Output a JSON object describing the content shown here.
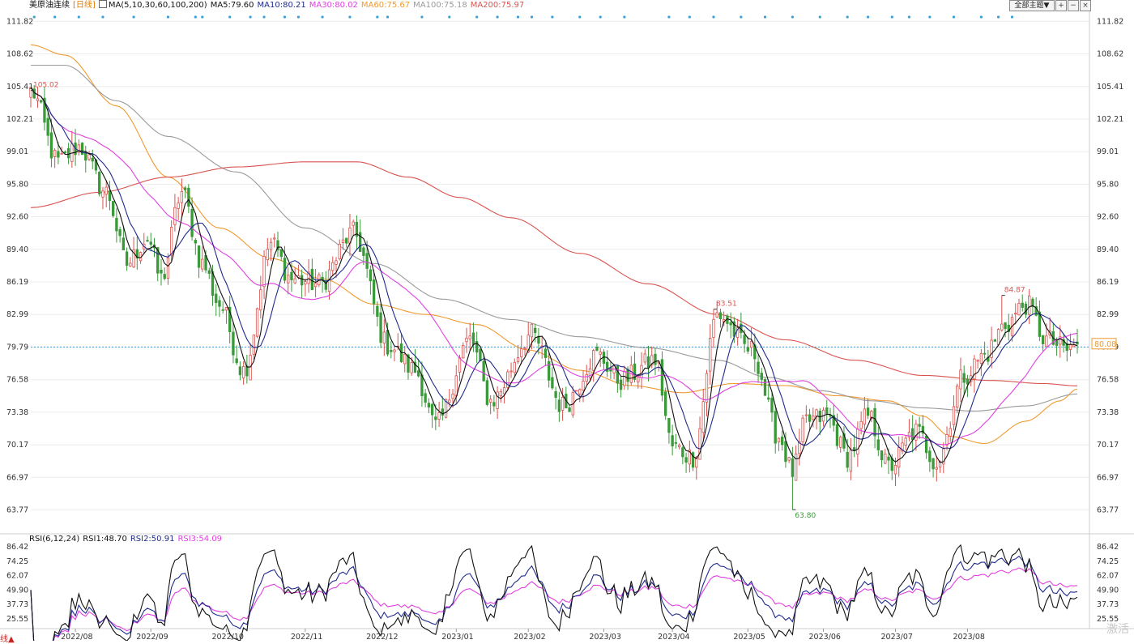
{
  "header": {
    "instrument": "美原油连续",
    "period": "[日线]",
    "ma_label": "MA(5,10,30,60,100,200)",
    "ma5": "MA5:79.60",
    "ma10": "MA10:80.21",
    "ma30": "MA30:80.02",
    "ma60": "MA60:75.67",
    "ma100": "MA100:75.18",
    "ma200": "MA200:75.97"
  },
  "rsi_header": {
    "label": "RSI(6,12,24)",
    "rsi1": "RSI1:48.70",
    "rsi2": "RSI2:50.91",
    "rsi3": "RSI3:54.09"
  },
  "toolbar": {
    "theme_label": "全部主题▼",
    "plus": "+",
    "minus": "−",
    "close": "×"
  },
  "watermark": "激活",
  "bottom_left_tag": "线▲",
  "colors": {
    "up": "#d9534f",
    "down": "#3a9a3a",
    "ma5": "#111111",
    "ma10": "#1f2a8c",
    "ma30": "#e040e0",
    "ma60": "#f09a30",
    "ma100": "#9a9a9a",
    "ma200": "#d9534f",
    "rsi1": "#111111",
    "rsi2": "#1f2a8c",
    "rsi3": "#e040e0",
    "grid": "#ececec",
    "dashed": "#3aa0d8",
    "dots": "#3aa0d8"
  },
  "chart_data": [
    {
      "type": "candlestick",
      "ylim": [
        61.5,
        112.8
      ],
      "yticks": [
        "111.82",
        "108.62",
        "105.41",
        "102.21",
        "99.01",
        "95.80",
        "92.60",
        "89.40",
        "86.19",
        "82.99",
        "79.79",
        "76.58",
        "73.38",
        "70.17",
        "66.97",
        "63.77"
      ],
      "x_labels": [
        "2022/08",
        "2022/09",
        "2022/10",
        "2022/11",
        "2022/12",
        "2023/01",
        "2023/02",
        "2023/03",
        "2023/04",
        "2023/05",
        "2023/06",
        "2023/07",
        "2023/08"
      ],
      "x_label_days": [
        13,
        35,
        57,
        80,
        102,
        124,
        145,
        167,
        187,
        209,
        231,
        252,
        273
      ],
      "num_days": 305,
      "current_price": "80.08",
      "current_value": 80.08,
      "dashed_line_value": 79.79,
      "annotations": [
        {
          "label": "105.02",
          "day": 0,
          "value": 105.02,
          "kind": "high"
        },
        {
          "label": "83.51",
          "day": 199,
          "value": 83.51,
          "kind": "high"
        },
        {
          "label": "63.80",
          "day": 222,
          "value": 63.8,
          "kind": "low"
        },
        {
          "label": "84.87",
          "day": 283,
          "value": 84.87,
          "kind": "high"
        }
      ],
      "anchors": [
        [
          0,
          105.0
        ],
        [
          8,
          98.0
        ],
        [
          14,
          99.5
        ],
        [
          22,
          95.0
        ],
        [
          28,
          88.0
        ],
        [
          34,
          90.5
        ],
        [
          38,
          86.5
        ],
        [
          44,
          95.0
        ],
        [
          50,
          88.0
        ],
        [
          55,
          84.0
        ],
        [
          62,
          77.5
        ],
        [
          70,
          90.0
        ],
        [
          76,
          86.5
        ],
        [
          84,
          86.0
        ],
        [
          94,
          91.0
        ],
        [
          104,
          80.0
        ],
        [
          112,
          77.5
        ],
        [
          118,
          72.0
        ],
        [
          128,
          80.5
        ],
        [
          134,
          74.5
        ],
        [
          146,
          81.0
        ],
        [
          155,
          74.0
        ],
        [
          165,
          79.0
        ],
        [
          172,
          76.5
        ],
        [
          182,
          78.5
        ],
        [
          187,
          70.0
        ],
        [
          193,
          69.0
        ],
        [
          200,
          83.0
        ],
        [
          210,
          79.5
        ],
        [
          218,
          71.0
        ],
        [
          222,
          67.5
        ],
        [
          226,
          72.5
        ],
        [
          232,
          73.0
        ],
        [
          238,
          69.0
        ],
        [
          244,
          73.0
        ],
        [
          250,
          68.0
        ],
        [
          258,
          71.5
        ],
        [
          264,
          68.5
        ],
        [
          272,
          77.0
        ],
        [
          278,
          79.0
        ],
        [
          284,
          82.0
        ],
        [
          290,
          84.0
        ],
        [
          296,
          80.5
        ],
        [
          302,
          79.5
        ],
        [
          305,
          80.08
        ]
      ],
      "series": [
        {
          "name": "MA5",
          "value": 79.6,
          "window": 5
        },
        {
          "name": "MA10",
          "value": 80.21,
          "window": 10
        },
        {
          "name": "MA30",
          "value": 80.02,
          "window": 30
        },
        {
          "name": "MA60",
          "value": 75.67
        },
        {
          "name": "MA100",
          "value": 75.18
        },
        {
          "name": "MA200",
          "value": 75.97
        }
      ],
      "ma_curves": {
        "MA60": [
          [
            0,
            109.5
          ],
          [
            10,
            108.5
          ],
          [
            25,
            103.5
          ],
          [
            40,
            96.5
          ],
          [
            55,
            91.5
          ],
          [
            70,
            88.5
          ],
          [
            85,
            86.5
          ],
          [
            100,
            84.0
          ],
          [
            115,
            83.0
          ],
          [
            130,
            82.0
          ],
          [
            145,
            79.5
          ],
          [
            160,
            77.5
          ],
          [
            175,
            76.0
          ],
          [
            190,
            75.3
          ],
          [
            205,
            76.2
          ],
          [
            220,
            76.0
          ],
          [
            235,
            75.0
          ],
          [
            250,
            74.5
          ],
          [
            260,
            73.0
          ],
          [
            268,
            71.0
          ],
          [
            278,
            70.3
          ],
          [
            290,
            72.5
          ],
          [
            300,
            74.5
          ],
          [
            305,
            75.67
          ]
        ],
        "MA100": [
          [
            0,
            107.5
          ],
          [
            10,
            107.5
          ],
          [
            25,
            104.0
          ],
          [
            40,
            100.5
          ],
          [
            60,
            97.0
          ],
          [
            80,
            91.5
          ],
          [
            100,
            88.0
          ],
          [
            120,
            84.5
          ],
          [
            140,
            82.5
          ],
          [
            160,
            80.8
          ],
          [
            180,
            79.7
          ],
          [
            200,
            78.5
          ],
          [
            215,
            76.8
          ],
          [
            230,
            75.5
          ],
          [
            245,
            74.5
          ],
          [
            260,
            73.8
          ],
          [
            275,
            73.5
          ],
          [
            290,
            74.0
          ],
          [
            305,
            75.18
          ]
        ],
        "MA200": [
          [
            0,
            93.5
          ],
          [
            20,
            95.0
          ],
          [
            40,
            96.5
          ],
          [
            60,
            97.5
          ],
          [
            80,
            98.0
          ],
          [
            95,
            98.0
          ],
          [
            110,
            96.5
          ],
          [
            125,
            94.5
          ],
          [
            140,
            92.5
          ],
          [
            160,
            89.0
          ],
          [
            180,
            86.0
          ],
          [
            200,
            83.0
          ],
          [
            220,
            80.5
          ],
          [
            240,
            78.5
          ],
          [
            260,
            77.0
          ],
          [
            280,
            76.5
          ],
          [
            295,
            76.2
          ],
          [
            305,
            75.97
          ]
        ]
      }
    },
    {
      "type": "line",
      "title": "RSI(6,12,24)",
      "ylim": [
        20.0,
        90.0
      ],
      "yticks": [
        "86.42",
        "74.25",
        "62.07",
        "49.90",
        "37.73",
        "25.55"
      ],
      "series": [
        {
          "name": "RSI1",
          "value": 48.7,
          "period": 6
        },
        {
          "name": "RSI2",
          "value": 50.91,
          "period": 12
        },
        {
          "name": "RSI3",
          "value": 54.09,
          "period": 24
        }
      ]
    }
  ]
}
